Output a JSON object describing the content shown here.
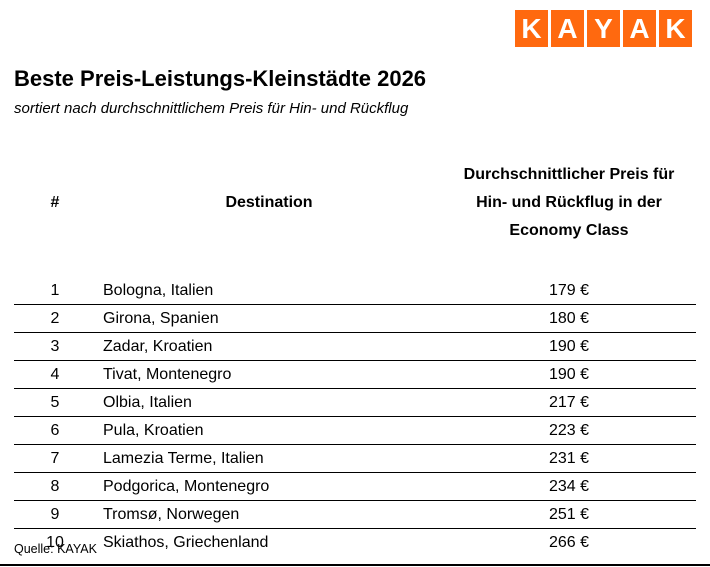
{
  "logo": {
    "name": "KAYAK",
    "letters": [
      "K",
      "A",
      "Y",
      "A",
      "K"
    ],
    "color": "#ff690f"
  },
  "title": "Beste Preis-Leistungs-Kleinstädte 2026",
  "subtitle": "sortiert nach durchschnittlichem Preis für Hin- und Rückflug",
  "table": {
    "headers": {
      "rank": "#",
      "destination": "Destination",
      "price_lines": [
        "Durchschnittlicher Preis für",
        "Hin- und Rückflug in der",
        "Economy Class"
      ]
    },
    "rows": [
      {
        "rank": "1",
        "destination": "Bologna, Italien",
        "price": "179 €"
      },
      {
        "rank": "2",
        "destination": "Girona, Spanien",
        "price": "180 €"
      },
      {
        "rank": "3",
        "destination": "Zadar, Kroatien",
        "price": "190 €"
      },
      {
        "rank": "4",
        "destination": "Tivat, Montenegro",
        "price": "190 €"
      },
      {
        "rank": "5",
        "destination": "Olbia, Italien",
        "price": "217 €"
      },
      {
        "rank": "6",
        "destination": "Pula, Kroatien",
        "price": "223 €"
      },
      {
        "rank": "7",
        "destination": "Lamezia Terme, Italien",
        "price": "231 €"
      },
      {
        "rank": "8",
        "destination": "Podgorica, Montenegro",
        "price": "234 €"
      },
      {
        "rank": "9",
        "destination": "Tromsø, Norwegen",
        "price": "251 €"
      },
      {
        "rank": "10",
        "destination": "Skiathos, Griechenland",
        "price": "266 €"
      }
    ]
  },
  "footer": {
    "source": "Quelle: KAYAK"
  },
  "chart_data": {
    "type": "table",
    "title": "Beste Preis-Leistungs-Kleinstädte 2026",
    "subtitle": "sortiert nach durchschnittlichem Preis für Hin- und Rückflug",
    "columns": [
      "#",
      "Destination",
      "Durchschnittlicher Preis für Hin- und Rückflug in der Economy Class"
    ],
    "rows": [
      [
        1,
        "Bologna, Italien",
        "179 €"
      ],
      [
        2,
        "Girona, Spanien",
        "180 €"
      ],
      [
        3,
        "Zadar, Kroatien",
        "190 €"
      ],
      [
        4,
        "Tivat, Montenegro",
        "190 €"
      ],
      [
        5,
        "Olbia, Italien",
        "217 €"
      ],
      [
        6,
        "Pula, Kroatien",
        "223 €"
      ],
      [
        7,
        "Lamezia Terme, Italien",
        "231 €"
      ],
      [
        8,
        "Podgorica, Montenegro",
        "234 €"
      ],
      [
        9,
        "Tromsø, Norwegen",
        "251 €"
      ],
      [
        10,
        "Skiathos, Griechenland",
        "266 €"
      ]
    ],
    "values_eur": [
      179,
      180,
      190,
      190,
      217,
      223,
      231,
      234,
      251,
      266
    ],
    "currency": "EUR",
    "source": "Quelle: KAYAK"
  }
}
